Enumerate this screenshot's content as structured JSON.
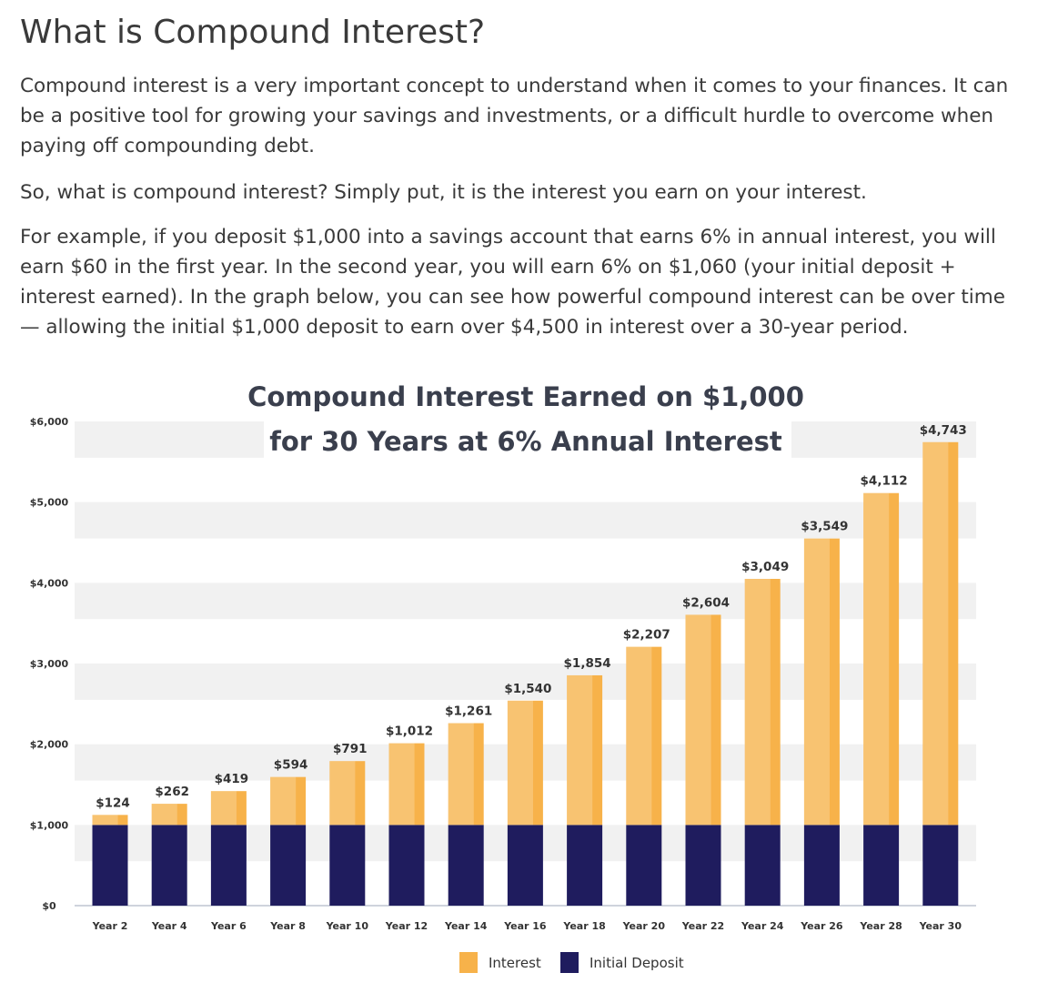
{
  "article": {
    "heading": "What is Compound Interest?",
    "paragraphs": [
      "Compound interest is a very important concept to understand when it comes to your finances. It can be a positive tool for growing your savings and investments, or a difficult hurdle to overcome when paying off compounding debt.",
      "So, what is compound interest? Simply put, it is the interest you earn on your interest.",
      "For example, if you deposit $1,000 into a savings account that earns 6% in annual interest, you will earn $60 in the first year. In the second year, you will earn 6% on $1,060 (your initial deposit + interest earned).  In the graph below, you can see how powerful compound interest can be over time — allowing the initial $1,000 deposit to earn over $4,500 in interest over a 30-year period."
    ]
  },
  "chart_data": {
    "type": "bar",
    "stacked": true,
    "title_lines": [
      "Compound Interest Earned on $1,000",
      "for 30 Years at 6% Annual Interest"
    ],
    "categories": [
      "Year 2",
      "Year 4",
      "Year 6",
      "Year 8",
      "Year 10",
      "Year 12",
      "Year 14",
      "Year 16",
      "Year 18",
      "Year 20",
      "Year 22",
      "Year 24",
      "Year 26",
      "Year 28",
      "Year 30"
    ],
    "series": [
      {
        "name": "Initial Deposit",
        "color": "#1f1c5e",
        "values": [
          1000,
          1000,
          1000,
          1000,
          1000,
          1000,
          1000,
          1000,
          1000,
          1000,
          1000,
          1000,
          1000,
          1000,
          1000
        ]
      },
      {
        "name": "Interest",
        "color": "#f7b24a",
        "values": [
          124,
          262,
          419,
          594,
          791,
          1012,
          1261,
          1540,
          1854,
          2207,
          2604,
          3049,
          3549,
          4112,
          4743
        ]
      }
    ],
    "data_labels": [
      "$124",
      "$262",
      "$419",
      "$594",
      "$791",
      "$1,012",
      "$1,261",
      "$1,540",
      "$1,854",
      "$2,207",
      "$2,604",
      "$3,049",
      "$3,549",
      "$4,112",
      "$4,743"
    ],
    "ylim": [
      0,
      6000
    ],
    "yticks": [
      0,
      1000,
      2000,
      3000,
      4000,
      5000,
      6000
    ],
    "ytick_labels": [
      "$0",
      "$1,000",
      "$2,000",
      "$3,000",
      "$4,000",
      "$5,000",
      "$6,000"
    ],
    "legend_order": [
      "Interest",
      "Initial Deposit"
    ],
    "legend_position": "bottom-center",
    "grid": "alternating horizontal bands",
    "band_color": "#f1f1f1"
  }
}
